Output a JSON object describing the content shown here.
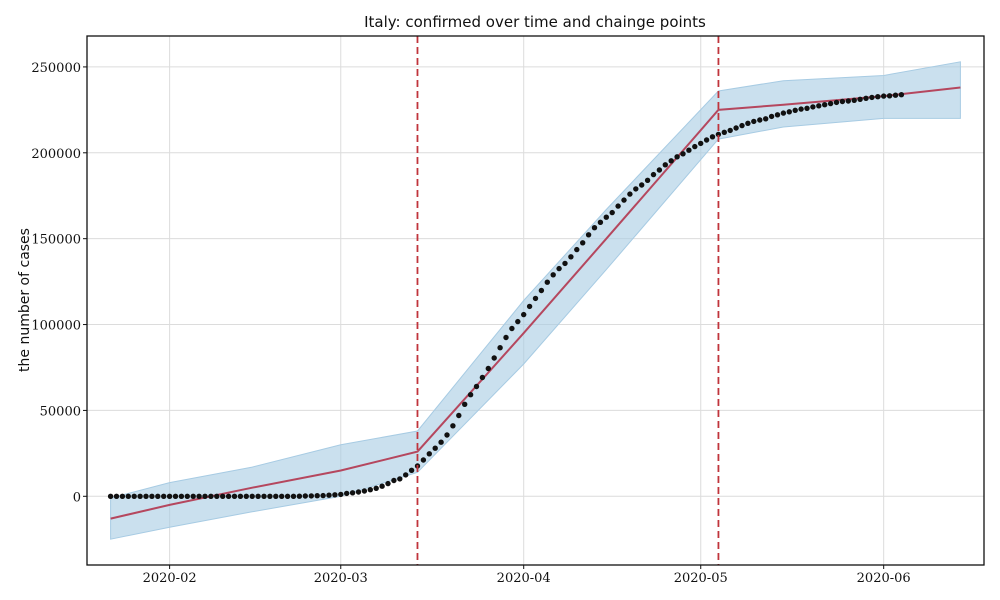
{
  "chart_data": {
    "type": "line",
    "title": "Italy: confirmed over time and chainge points",
    "xlabel": "",
    "ylabel": "the number of cases",
    "x_ticks": [
      "2020-02",
      "2020-03",
      "2020-04",
      "2020-05",
      "2020-06"
    ],
    "y_ticks": [
      "0",
      "50000",
      "100000",
      "150000",
      "200000",
      "250000"
    ],
    "x_range": [
      "2020-01-18",
      "2020-06-18"
    ],
    "ylim": [
      -40000,
      268000
    ],
    "grid": true,
    "change_points": [
      "2020-03-14",
      "2020-05-04"
    ],
    "observed": {
      "start": "2020-01-22",
      "daily_values": [
        0,
        0,
        0,
        0,
        0,
        0,
        0,
        0,
        0,
        0,
        0,
        0,
        0,
        0,
        0,
        0,
        0,
        0,
        0,
        0,
        0,
        0,
        0,
        0,
        0,
        0,
        0,
        0,
        0,
        0,
        3,
        20,
        79,
        150,
        229,
        322,
        400,
        650,
        888,
        1128,
        1694,
        2036,
        2502,
        3089,
        3858,
        4636,
        5883,
        7375,
        9172,
        10149,
        12462,
        15113,
        17660,
        21157,
        24747,
        27980,
        31506,
        35713,
        41035,
        47021,
        53578,
        59138,
        63927,
        69176,
        74386,
        80539,
        86498,
        92472,
        97689,
        101739,
        105792,
        110574,
        115242,
        119827,
        124632,
        128948,
        132547,
        135586,
        139422,
        143626,
        147577,
        152271,
        156363,
        159516,
        162488,
        165155,
        168941,
        172434,
        175925,
        178972,
        181228,
        183957,
        187327,
        189973,
        192994,
        195351,
        197675,
        199414,
        201505,
        203591,
        205463,
        207428,
        209328,
        210717,
        211938,
        213013,
        214457,
        215858,
        217185,
        218268,
        219070,
        219814,
        221216,
        222104,
        223096,
        223885,
        224760,
        225435,
        225886,
        226699,
        227364,
        228006,
        228658,
        229327,
        229858,
        230158,
        230555,
        231139,
        231732,
        232248,
        232664,
        232997,
        233197,
        233515,
        233836
      ],
      "marker_color": "#111111"
    },
    "fitted": {
      "dates": [
        "2020-01-22",
        "2020-02-01",
        "2020-02-15",
        "2020-03-01",
        "2020-03-14",
        "2020-04-01",
        "2020-04-15",
        "2020-05-04",
        "2020-05-15",
        "2020-06-01",
        "2020-06-14"
      ],
      "values": [
        -13000,
        -5000,
        5000,
        15000,
        26000,
        95000,
        150000,
        225000,
        228000,
        233000,
        238000
      ],
      "color": "#b5475e"
    },
    "band": {
      "dates": [
        "2020-01-22",
        "2020-02-01",
        "2020-02-15",
        "2020-03-01",
        "2020-03-14",
        "2020-04-01",
        "2020-04-15",
        "2020-05-04",
        "2020-05-15",
        "2020-06-01",
        "2020-06-14"
      ],
      "lower": [
        -25000,
        -18000,
        -9000,
        0,
        14000,
        77000,
        132000,
        208000,
        215000,
        220000,
        220000
      ],
      "upper": [
        -1000,
        8000,
        17000,
        30000,
        38000,
        114000,
        167000,
        236000,
        242000,
        245000,
        253000
      ],
      "color": "#a7cbe3"
    },
    "change_point_color": "#c0343c"
  }
}
